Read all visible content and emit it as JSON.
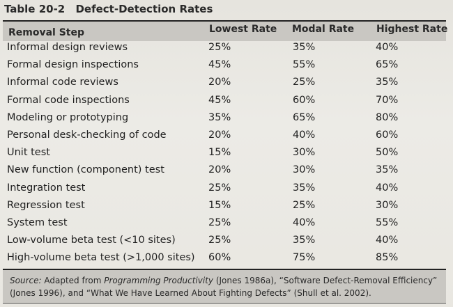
{
  "table": {
    "number": "Table 20-2",
    "title": "Defect-Detection Rates",
    "columns": [
      "Removal Step",
      "Lowest Rate",
      "Modal Rate",
      "Highest Rate"
    ],
    "rows": [
      [
        "Informal design reviews",
        "25%",
        "35%",
        "40%"
      ],
      [
        "Formal design inspections",
        "45%",
        "55%",
        "65%"
      ],
      [
        "Informal code reviews",
        "20%",
        "25%",
        "35%"
      ],
      [
        "Formal code inspections",
        "45%",
        "60%",
        "70%"
      ],
      [
        "Modeling or prototyping",
        "35%",
        "65%",
        "80%"
      ],
      [
        "Personal desk-checking of code",
        "20%",
        "40%",
        "60%"
      ],
      [
        "Unit test",
        "15%",
        "30%",
        "50%"
      ],
      [
        "New function (component) test",
        "20%",
        "30%",
        "35%"
      ],
      [
        "Integration test",
        "25%",
        "35%",
        "40%"
      ],
      [
        "Regression test",
        "15%",
        "25%",
        "30%"
      ],
      [
        "System test",
        "25%",
        "40%",
        "55%"
      ],
      [
        "Low-volume beta test (<10 sites)",
        "25%",
        "35%",
        "40%"
      ],
      [
        "High-volume beta test (>1,000 sites)",
        "60%",
        "75%",
        "85%"
      ]
    ]
  },
  "source": {
    "label": "Source:",
    "text_before": "Adapted from",
    "book_title": "Programming Productivity",
    "text_after": "(Jones 1986a), “Software Defect-Removal Efficiency” (Jones 1996), and “What We Have Learned About Fighting Defects” (Shull et al. 2002)."
  }
}
